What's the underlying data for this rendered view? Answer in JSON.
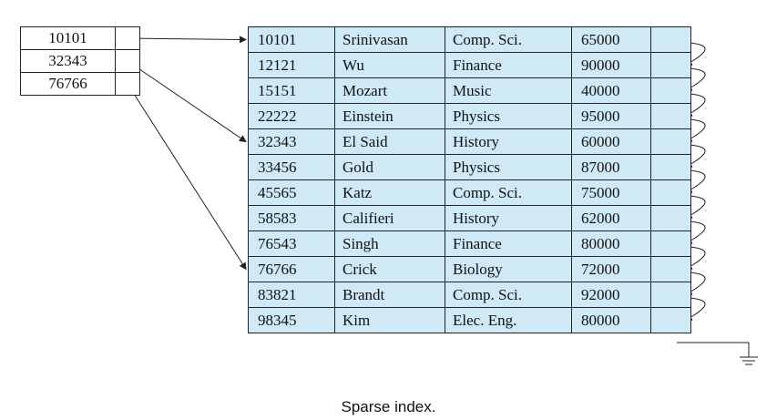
{
  "caption": "Sparse index.",
  "index_entries": [
    {
      "key": "10101",
      "target": 0
    },
    {
      "key": "32343",
      "target": 4
    },
    {
      "key": "76766",
      "target": 9
    }
  ],
  "records": [
    {
      "id": "10101",
      "name": "Srinivasan",
      "dept": "Comp. Sci.",
      "salary": "65000"
    },
    {
      "id": "12121",
      "name": "Wu",
      "dept": "Finance",
      "salary": "90000"
    },
    {
      "id": "15151",
      "name": "Mozart",
      "dept": "Music",
      "salary": "40000"
    },
    {
      "id": "22222",
      "name": "Einstein",
      "dept": "Physics",
      "salary": "95000"
    },
    {
      "id": "32343",
      "name": "El Said",
      "dept": "History",
      "salary": "60000"
    },
    {
      "id": "33456",
      "name": "Gold",
      "dept": "Physics",
      "salary": "87000"
    },
    {
      "id": "45565",
      "name": "Katz",
      "dept": "Comp. Sci.",
      "salary": "75000"
    },
    {
      "id": "58583",
      "name": "Califieri",
      "dept": "History",
      "salary": "62000"
    },
    {
      "id": "76543",
      "name": "Singh",
      "dept": "Finance",
      "salary": "80000"
    },
    {
      "id": "76766",
      "name": "Crick",
      "dept": "Biology",
      "salary": "72000"
    },
    {
      "id": "83821",
      "name": "Brandt",
      "dept": "Comp. Sci.",
      "salary": "92000"
    },
    {
      "id": "98345",
      "name": "Kim",
      "dept": "Elec. Eng.",
      "salary": "80000"
    }
  ],
  "colors": {
    "record_fill": "#cfe9f6",
    "line": "#222222"
  }
}
